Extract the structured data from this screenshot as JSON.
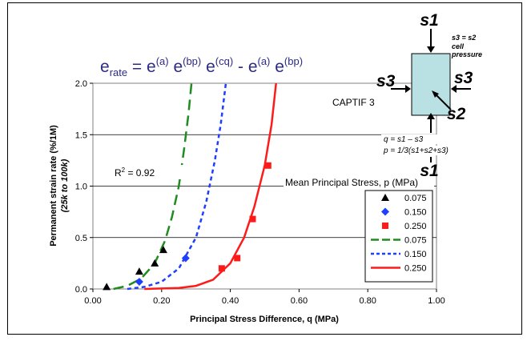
{
  "chart_data": {
    "type": "scatter",
    "xlabel": "Principal Stress Difference, q (MPa)",
    "ylabel_line1": "Permanent strain rate (%/1M)",
    "ylabel_line2": "(25k to 100k)",
    "xlim": [
      0,
      1.0
    ],
    "ylim": [
      0,
      2.0
    ],
    "xticks": [
      "0.00",
      "0.20",
      "0.40",
      "0.60",
      "0.80",
      "1.00"
    ],
    "yticks": [
      "0.0",
      "0.5",
      "1.0",
      "1.5",
      "2.0"
    ],
    "grid": "horizontal",
    "equation": {
      "lhs": "e",
      "lhs_sub": "rate",
      "eq": " = e",
      "sup1": "(a)",
      "mid1": " e",
      "sup2": "(bp)",
      "mid2": " e",
      "sup3": "(cq)",
      "mid3": " - e",
      "sup4": "(a)",
      "mid4": " e",
      "sup5": "(bp)"
    },
    "r2_label": "R",
    "r2_sup": "2",
    "r2_value": " = 0.92",
    "mean_stress_label": "Mean Principal Stress, p (MPa)",
    "legend": {
      "placement": "right"
    },
    "series": [
      {
        "name": "0.075",
        "kind": "points",
        "marker": "triangle",
        "color": "#000000",
        "points": [
          [
            0.04,
            0.02
          ],
          [
            0.135,
            0.17
          ],
          [
            0.18,
            0.25
          ],
          [
            0.205,
            0.38
          ]
        ]
      },
      {
        "name": "0.150",
        "kind": "points",
        "marker": "diamond",
        "color": "#1f3fff",
        "points": [
          [
            0.135,
            0.07
          ],
          [
            0.27,
            0.3
          ]
        ]
      },
      {
        "name": "0.250",
        "kind": "points",
        "marker": "square",
        "color": "#ff1a1a",
        "points": [
          [
            0.375,
            0.2
          ],
          [
            0.42,
            0.3
          ],
          [
            0.465,
            0.68
          ],
          [
            0.51,
            1.2
          ]
        ]
      },
      {
        "name": "0.075",
        "kind": "curve",
        "dash": "long",
        "color": "#1e8c1e",
        "points": [
          [
            0.06,
            0.0
          ],
          [
            0.1,
            0.03
          ],
          [
            0.14,
            0.1
          ],
          [
            0.18,
            0.25
          ],
          [
            0.21,
            0.47
          ],
          [
            0.23,
            0.7
          ],
          [
            0.25,
            1.0
          ],
          [
            0.265,
            1.35
          ],
          [
            0.278,
            1.7
          ],
          [
            0.287,
            2.0
          ]
        ]
      },
      {
        "name": "0.150",
        "kind": "curve",
        "dash": "short",
        "color": "#1f3fff",
        "points": [
          [
            0.1,
            0.0
          ],
          [
            0.15,
            0.02
          ],
          [
            0.2,
            0.07
          ],
          [
            0.25,
            0.2
          ],
          [
            0.3,
            0.5
          ],
          [
            0.33,
            0.85
          ],
          [
            0.355,
            1.25
          ],
          [
            0.372,
            1.6
          ],
          [
            0.387,
            2.0
          ]
        ]
      },
      {
        "name": "0.250",
        "kind": "curve",
        "dash": "solid",
        "color": "#ff1a1a",
        "points": [
          [
            0.15,
            0.0
          ],
          [
            0.25,
            0.01
          ],
          [
            0.3,
            0.03
          ],
          [
            0.35,
            0.09
          ],
          [
            0.4,
            0.25
          ],
          [
            0.44,
            0.5
          ],
          [
            0.47,
            0.8
          ],
          [
            0.5,
            1.2
          ],
          [
            0.52,
            1.6
          ],
          [
            0.533,
            2.0
          ]
        ]
      }
    ]
  },
  "diagram": {
    "s1_top": "s1",
    "s1_bottom": "s1",
    "s3_left": "s3",
    "s3_right": "s3",
    "s2": "s2",
    "note_line1": "s3 = s2",
    "note_line2": "cell",
    "note_line3": "pressure",
    "captif": "CAPTIF 3",
    "q_formula": "q = s1 – s3",
    "p_formula": "p = 1/3(s1+s2+s3)",
    "box_color": "#b9e0e3"
  }
}
